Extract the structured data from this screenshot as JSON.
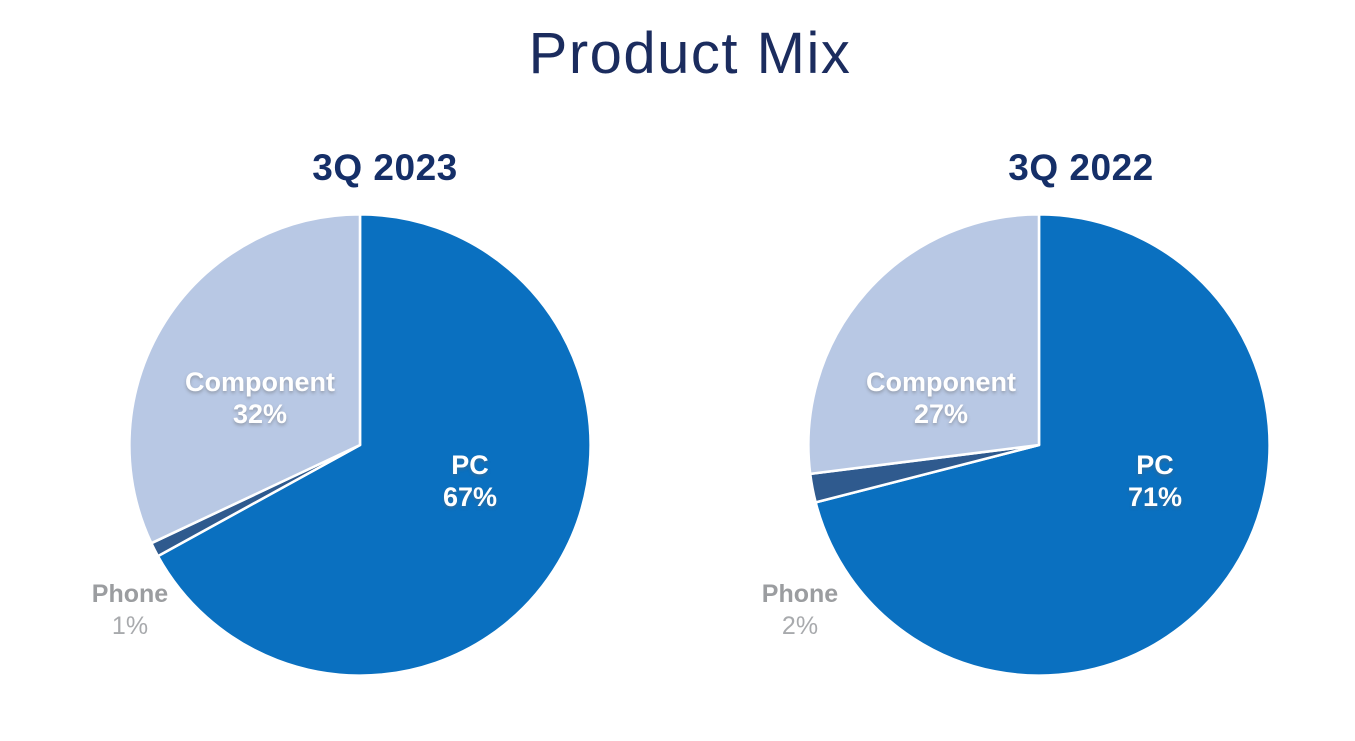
{
  "page": {
    "title": "Product Mix",
    "background": "#ffffff"
  },
  "colors": {
    "page_bg": "#ffffff",
    "title_navy": "#1b2c5e",
    "subtitle_navy": "#152f68",
    "pc_blue": "#0a70c0",
    "phone_navy": "#2f5a8e",
    "component_light_blue": "#b8c8e4",
    "outside_label_gray": "#9b9da0",
    "outside_pct_gray": "#a8aaad",
    "inside_label_white": "#ffffff"
  },
  "chart_data": [
    {
      "type": "pie",
      "title": "3Q 2023",
      "start_angle_deg": 0,
      "direction": "clockwise",
      "legend_position": "none",
      "slice_border_color": "#ffffff",
      "slices": [
        {
          "label": "PC",
          "value_pct": 67,
          "display_pct": "67%",
          "color": "#0a70c0",
          "label_position": "inside"
        },
        {
          "label": "Phone",
          "value_pct": 1,
          "display_pct": "1%",
          "color": "#2f5a8e",
          "label_position": "outside"
        },
        {
          "label": "Component",
          "value_pct": 32,
          "display_pct": "32%",
          "color": "#b8c8e4",
          "label_position": "inside"
        }
      ]
    },
    {
      "type": "pie",
      "title": "3Q 2022",
      "start_angle_deg": 0,
      "direction": "clockwise",
      "legend_position": "none",
      "slice_border_color": "#ffffff",
      "slices": [
        {
          "label": "PC",
          "value_pct": 71,
          "display_pct": "71%",
          "color": "#0a70c0",
          "label_position": "inside"
        },
        {
          "label": "Phone",
          "value_pct": 2,
          "display_pct": "2%",
          "color": "#2f5a8e",
          "label_position": "outside"
        },
        {
          "label": "Component",
          "value_pct": 27,
          "display_pct": "27%",
          "color": "#b8c8e4",
          "label_position": "inside"
        }
      ]
    }
  ]
}
